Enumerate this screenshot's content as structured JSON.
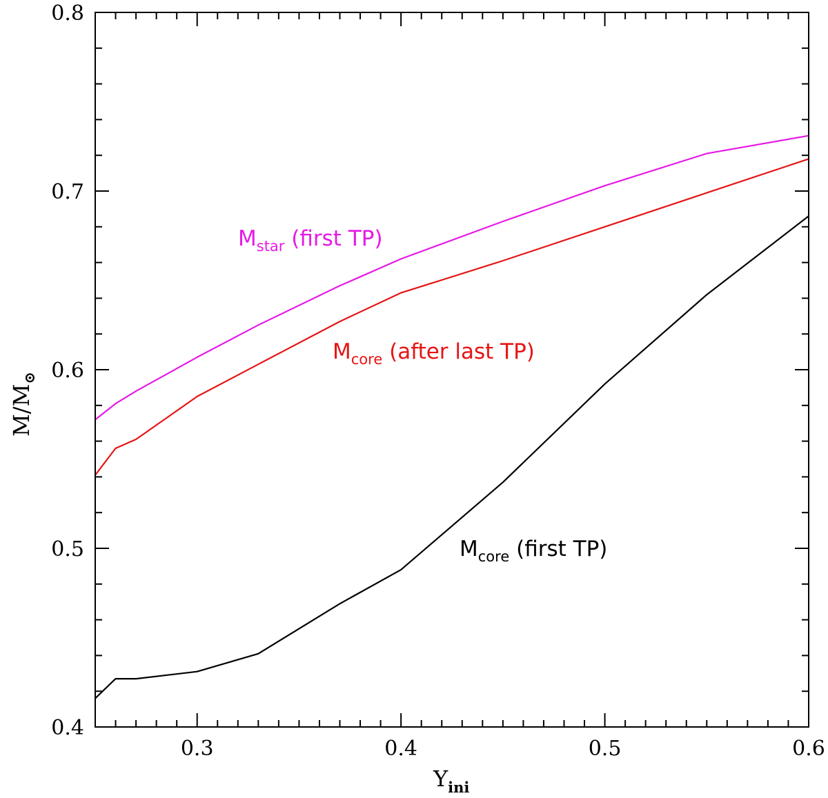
{
  "chart_data": {
    "type": "line",
    "xlabel": "Y",
    "xlabel_sub": "ini",
    "ylabel": "M/M",
    "ylabel_sub": "⊙",
    "xlim": [
      0.25,
      0.6
    ],
    "ylim": [
      0.4,
      0.8
    ],
    "x_ticks": [
      "0.3",
      "0.4",
      "0.5",
      "0.6"
    ],
    "y_ticks": [
      "0.4",
      "0.5",
      "0.6",
      "0.7",
      "0.8"
    ],
    "grid": false,
    "series": [
      {
        "id": "mstar-first-tp",
        "label_main": "M",
        "label_sub": "star",
        "label_rest": " (first TP)",
        "color": "#e619e6",
        "x": [
          0.25,
          0.26,
          0.27,
          0.3,
          0.33,
          0.37,
          0.4,
          0.45,
          0.5,
          0.55,
          0.6
        ],
        "y": [
          0.572,
          0.581,
          0.588,
          0.607,
          0.625,
          0.647,
          0.662,
          0.683,
          0.703,
          0.721,
          0.731
        ]
      },
      {
        "id": "mcore-after-last-tp",
        "label_main": "M",
        "label_sub": "core",
        "label_rest": " (after last TP)",
        "color": "#e61414",
        "x": [
          0.25,
          0.26,
          0.27,
          0.3,
          0.33,
          0.37,
          0.4,
          0.45,
          0.5,
          0.55,
          0.6
        ],
        "y": [
          0.541,
          0.556,
          0.561,
          0.585,
          0.603,
          0.627,
          0.643,
          0.661,
          0.68,
          0.699,
          0.718
        ]
      },
      {
        "id": "mcore-first-tp",
        "label_main": "M",
        "label_sub": "core",
        "label_rest": " (first TP)",
        "color": "#000000",
        "x": [
          0.25,
          0.26,
          0.27,
          0.3,
          0.33,
          0.37,
          0.4,
          0.45,
          0.5,
          0.55,
          0.6
        ],
        "y": [
          0.416,
          0.427,
          0.427,
          0.431,
          0.441,
          0.469,
          0.488,
          0.537,
          0.592,
          0.642,
          0.686
        ]
      }
    ]
  }
}
